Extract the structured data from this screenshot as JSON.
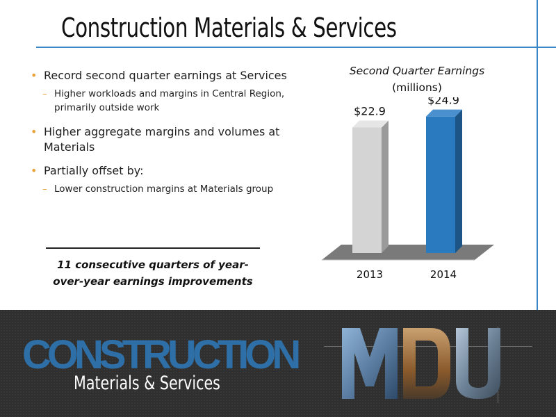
{
  "slide": {
    "title": "Construction Materials & Services"
  },
  "bullets": [
    {
      "text": "Record second quarter earnings at Services",
      "sub": [
        "Higher workloads and margins in Central Region, primarily outside work"
      ]
    },
    {
      "text": "Higher aggregate margins and volumes at Materials",
      "sub": []
    },
    {
      "text": "Partially offset by:",
      "sub": [
        "Lower construction margins at Materials group"
      ]
    }
  ],
  "callout": "11 consecutive quarters of year-over-year earnings improvements",
  "chart_data": {
    "type": "bar",
    "title": "Second Quarter Earnings",
    "subtitle": "(millions)",
    "categories": [
      "2013",
      "2014"
    ],
    "values": [
      22.9,
      24.9
    ],
    "data_labels": [
      "$22.9",
      "$24.9"
    ],
    "colors": [
      "#d4d4d4",
      "#2a7ac0"
    ],
    "ylim": [
      0,
      26
    ],
    "grid": false,
    "legend": "none"
  },
  "banner": {
    "logo_word": "CONSTRUCTION",
    "logo_sub": "Materials & Services",
    "logo_mark": "MDU"
  },
  "colors": {
    "accent_line": "#3a86c6",
    "bullet": "#e8a23a",
    "banner_bg": "#2f2f2f",
    "logo_blue": "#2d6fa6"
  }
}
